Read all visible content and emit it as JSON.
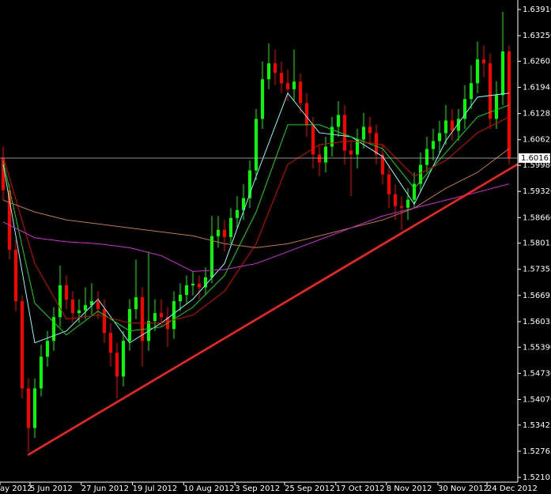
{
  "chart_data": {
    "type": "candlestick",
    "xlim": [
      -0.5,
      81.375
    ],
    "ylim": [
      1.52105,
      1.6391
    ],
    "yticks": [
      {
        "value": 1.6391,
        "label": "1.63910"
      },
      {
        "value": 1.6325,
        "label": "1.63250"
      },
      1.62605,
      1.61945,
      1.61285,
      1.60625,
      {
        "value": 1.5998,
        "label": "1.59980"
      },
      {
        "value": 1.5932,
        "label": "1.59320"
      },
      {
        "value": 1.5866,
        "label": "1.58660"
      },
      1.58015,
      1.57355,
      1.56695,
      1.56035,
      {
        "value": 1.5539,
        "label": "1.55390"
      },
      {
        "value": 1.5473,
        "label": "1.54730"
      },
      {
        "value": 1.5407,
        "label": "1.54070"
      },
      1.53425,
      1.52765,
      1.52105
    ],
    "xticks": [
      {
        "value": -0.5,
        "label": "ay 2012"
      },
      {
        "value": 4.25,
        "label": "5 Jun 2012"
      },
      {
        "value": 12.35,
        "label": "27 Jun 2012"
      },
      {
        "value": 20.45,
        "label": "19 Jul 2012"
      },
      {
        "value": 28.55,
        "label": "10 Aug 2012"
      },
      {
        "value": 36.65,
        "label": "3 Sep 2012"
      },
      {
        "value": 44.5,
        "label": "25 Sep 2012"
      },
      {
        "value": 52.6,
        "label": "17 Oct 2012"
      },
      {
        "value": 60.6,
        "label": "8 Nov 2012"
      },
      {
        "value": 68.75,
        "label": "30 Nov 2012"
      },
      {
        "value": 76.5,
        "label": "24 Dec 2012"
      }
    ],
    "up_color": "#00ff00",
    "down_color": "#ff0000",
    "open": [
      1.6015,
      1.5935,
      1.5785,
      1.5655,
      1.5435,
      1.5335,
      1.5435,
      1.5515,
      1.5555,
      1.5615,
      1.5695,
      1.5659,
      1.5625,
      1.5632,
      1.5645,
      1.5655,
      1.5635,
      1.5575,
      1.5525,
      1.5465,
      1.5555,
      1.5635,
      1.5665,
      1.5555,
      1.5605,
      1.5625,
      1.5615,
      1.5585,
      1.5655,
      1.5671,
      1.5695,
      1.5699,
      1.569,
      1.5715,
      1.5819,
      1.5835,
      1.5817,
      1.5865,
      1.5885,
      1.5915,
      1.5985,
      1.6115,
      1.6215,
      1.6255,
      1.6231,
      1.6205,
      1.619,
      1.6209,
      1.6155,
      1.6099,
      1.6025,
      1.6005,
      1.6045,
      1.6095,
      1.6125,
      1.6035,
      1.6025,
      1.6063,
      1.6095,
      1.6079,
      1.6025,
      1.5975,
      1.5925,
      1.5895,
      1.5891,
      1.5911,
      1.5951,
      1.5999,
      1.6039,
      1.6059,
      1.6079,
      1.6111,
      1.6085,
      1.6115,
      1.6165,
      1.6205,
      1.6265,
      1.6255,
      1.6115,
      1.6175,
      1.6285
    ],
    "high": [
      1.6045,
      1.595,
      1.581,
      1.567,
      1.546,
      1.546,
      1.5545,
      1.558,
      1.564,
      1.5745,
      1.572,
      1.568,
      1.566,
      1.569,
      1.57,
      1.568,
      1.566,
      1.56,
      1.555,
      1.558,
      1.566,
      1.576,
      1.569,
      1.578,
      1.566,
      1.566,
      1.564,
      1.568,
      1.57,
      1.572,
      1.573,
      1.572,
      1.574,
      1.587,
      1.587,
      1.586,
      1.589,
      1.592,
      1.595,
      1.601,
      1.614,
      1.626,
      1.6305,
      1.629,
      1.626,
      1.624,
      1.629,
      1.623,
      1.618,
      1.612,
      1.605,
      1.607,
      1.612,
      1.616,
      1.615,
      1.606,
      1.609,
      1.613,
      1.612,
      1.61,
      1.605,
      1.6,
      1.595,
      1.592,
      1.594,
      1.598,
      1.603,
      1.607,
      1.609,
      1.611,
      1.615,
      1.614,
      1.614,
      1.62,
      1.625,
      1.631,
      1.63,
      1.628,
      1.621,
      1.6385,
      1.63
    ],
    "low": [
      1.591,
      1.576,
      1.563,
      1.541,
      1.5275,
      1.531,
      1.5415,
      1.549,
      1.553,
      1.559,
      1.5635,
      1.56,
      1.56,
      1.561,
      1.562,
      1.561,
      1.555,
      1.549,
      1.541,
      1.544,
      1.553,
      1.561,
      1.549,
      1.553,
      1.558,
      1.559,
      1.554,
      1.556,
      1.563,
      1.565,
      1.567,
      1.566,
      1.567,
      1.57,
      1.579,
      1.578,
      1.58,
      1.584,
      1.586,
      1.589,
      1.596,
      1.609,
      1.619,
      1.62,
      1.618,
      1.616,
      1.616,
      1.613,
      1.607,
      1.599,
      1.597,
      1.598,
      1.602,
      1.607,
      1.6,
      1.592,
      1.599,
      1.604,
      1.605,
      1.6,
      1.595,
      1.589,
      1.586,
      1.5835,
      1.586,
      1.589,
      1.593,
      1.598,
      1.601,
      1.603,
      1.605,
      1.606,
      1.606,
      1.609,
      1.614,
      1.618,
      1.622,
      1.609,
      1.609,
      1.615,
      1.6
    ],
    "close": [
      1.5935,
      1.5785,
      1.5655,
      1.5435,
      1.5335,
      1.5435,
      1.5515,
      1.5555,
      1.5615,
      1.5695,
      1.5659,
      1.5625,
      1.5632,
      1.5645,
      1.5655,
      1.5635,
      1.5575,
      1.5525,
      1.5465,
      1.5555,
      1.5635,
      1.5665,
      1.5555,
      1.5605,
      1.5625,
      1.5615,
      1.5585,
      1.5655,
      1.5671,
      1.5695,
      1.5699,
      1.569,
      1.5715,
      1.5819,
      1.5835,
      1.5817,
      1.5865,
      1.5885,
      1.5915,
      1.5985,
      1.6115,
      1.6215,
      1.6255,
      1.6231,
      1.6205,
      1.619,
      1.6209,
      1.6155,
      1.6099,
      1.6025,
      1.6005,
      1.6045,
      1.6095,
      1.6125,
      1.6035,
      1.6025,
      1.6063,
      1.6095,
      1.6079,
      1.6025,
      1.5975,
      1.5925,
      1.5895,
      1.5891,
      1.5911,
      1.5951,
      1.5999,
      1.6039,
      1.6059,
      1.6079,
      1.6111,
      1.6085,
      1.6115,
      1.6165,
      1.6205,
      1.6265,
      1.6255,
      1.6115,
      1.6175,
      1.6285,
      1.6016
    ],
    "series": [
      {
        "color": "#7fffff",
        "x": [
          0,
          5,
          10,
          15,
          20,
          25,
          30,
          35,
          40,
          45,
          50,
          55,
          60,
          65,
          70,
          75,
          80
        ],
        "values": [
          1.6,
          1.555,
          1.558,
          1.566,
          1.555,
          1.56,
          1.566,
          1.575,
          1.597,
          1.618,
          1.608,
          1.607,
          1.602,
          1.59,
          1.606,
          1.617,
          1.618
        ]
      },
      {
        "color": "#00e000",
        "x": [
          0,
          5,
          10,
          15,
          20,
          25,
          30,
          35,
          40,
          45,
          50,
          55,
          60,
          65,
          70,
          75,
          80
        ],
        "values": [
          1.601,
          1.565,
          1.557,
          1.563,
          1.558,
          1.559,
          1.564,
          1.572,
          1.588,
          1.61,
          1.61,
          1.607,
          1.604,
          1.594,
          1.603,
          1.612,
          1.615
        ]
      },
      {
        "color": "#e00000",
        "x": [
          0,
          5,
          10,
          15,
          20,
          25,
          30,
          35,
          40,
          45,
          50,
          55,
          60,
          65,
          70,
          75,
          80
        ],
        "values": [
          1.602,
          1.575,
          1.561,
          1.562,
          1.56,
          1.56,
          1.562,
          1.568,
          1.58,
          1.6,
          1.605,
          1.606,
          1.605,
          1.597,
          1.601,
          1.608,
          1.612
        ]
      },
      {
        "color": "#c8783c",
        "x": [
          0,
          5,
          10,
          15,
          20,
          25,
          30,
          35,
          40,
          45,
          50,
          55,
          60,
          65,
          70,
          75,
          80
        ],
        "values": [
          1.591,
          1.588,
          1.586,
          1.585,
          1.584,
          1.583,
          1.582,
          1.58,
          1.579,
          1.58,
          1.582,
          1.584,
          1.586,
          1.589,
          1.594,
          1.598,
          1.604
        ]
      },
      {
        "color": "#e020e0",
        "x": [
          0,
          5,
          10,
          15,
          20,
          25,
          30,
          35,
          40,
          45,
          50,
          55,
          60,
          65,
          70,
          75,
          80
        ],
        "values": [
          1.5855,
          1.5815,
          1.5805,
          1.58,
          1.579,
          1.577,
          1.573,
          1.5735,
          1.575,
          1.578,
          1.581,
          1.584,
          1.587,
          1.589,
          1.591,
          1.593,
          1.5951
        ]
      }
    ],
    "trendline": {
      "color": "#ff2020",
      "x": [
        3.9,
        81.4
      ],
      "values": [
        1.5267,
        1.6001
      ]
    },
    "last_price": 1.60161
  }
}
